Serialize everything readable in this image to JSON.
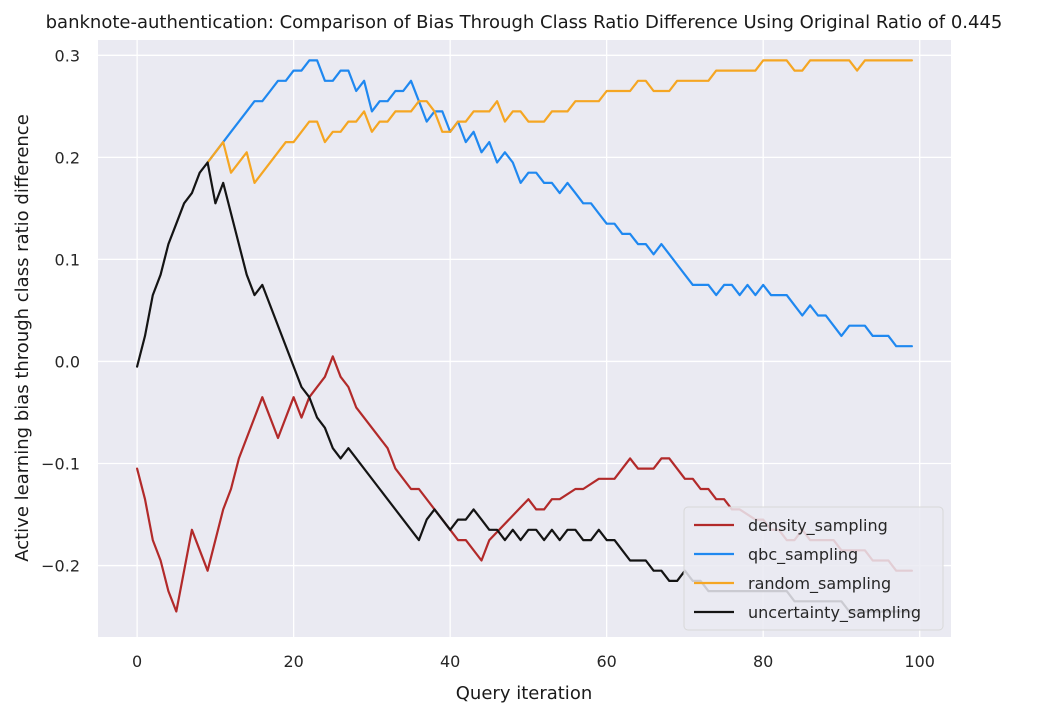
{
  "chart_data": {
    "type": "line",
    "title": "banknote-authentication: Comparison of Bias Through Class Ratio Difference Using Original Ratio of 0.445",
    "xlabel": "Query iteration",
    "ylabel": "Active learning bias through class ratio difference",
    "xlim": [
      -5,
      104
    ],
    "ylim": [
      -0.27,
      0.315
    ],
    "xticks": [
      0,
      20,
      40,
      60,
      80,
      100
    ],
    "yticks": [
      -0.2,
      -0.1,
      0.0,
      0.1,
      0.2,
      0.3
    ],
    "xtick_labels": [
      "0",
      "20",
      "40",
      "60",
      "80",
      "100"
    ],
    "ytick_labels": [
      "−0.2",
      "−0.1",
      "0.0",
      "0.1",
      "0.2",
      "0.3"
    ],
    "grid": true,
    "legend_position": "lower-right",
    "series": [
      {
        "name": "density_sampling",
        "color": "#b22a2a",
        "x": [
          0,
          1,
          2,
          3,
          4,
          5,
          7,
          9,
          11,
          12,
          13,
          16,
          18,
          20,
          21,
          22,
          24,
          25,
          26,
          27,
          28,
          32,
          33,
          35,
          36,
          40,
          41,
          42,
          44,
          45,
          50,
          51,
          52,
          53,
          54,
          56,
          57,
          59,
          61,
          62,
          63,
          64,
          66,
          67,
          68,
          70,
          71,
          72,
          73,
          74,
          75,
          76,
          77,
          79,
          80,
          81,
          82,
          83,
          84,
          85,
          86,
          87,
          88,
          89,
          90,
          91,
          92,
          93,
          94,
          95,
          96,
          97,
          98,
          99
        ],
        "y": [
          -0.105,
          -0.135,
          -0.175,
          -0.195,
          -0.225,
          -0.245,
          -0.165,
          -0.205,
          -0.145,
          -0.125,
          -0.095,
          -0.035,
          -0.075,
          -0.035,
          -0.055,
          -0.035,
          -0.015,
          0.005,
          -0.015,
          -0.025,
          -0.045,
          -0.085,
          -0.105,
          -0.125,
          -0.125,
          -0.165,
          -0.175,
          -0.175,
          -0.195,
          -0.175,
          -0.135,
          -0.145,
          -0.145,
          -0.135,
          -0.135,
          -0.125,
          -0.125,
          -0.115,
          -0.115,
          -0.105,
          -0.095,
          -0.105,
          -0.105,
          -0.095,
          -0.095,
          -0.115,
          -0.115,
          -0.125,
          -0.125,
          -0.135,
          -0.135,
          -0.145,
          -0.145,
          -0.155,
          -0.155,
          -0.165,
          -0.165,
          -0.175,
          -0.175,
          -0.165,
          -0.175,
          -0.175,
          -0.175,
          -0.175,
          -0.185,
          -0.185,
          -0.185,
          -0.185,
          -0.195,
          -0.195,
          -0.195,
          -0.205,
          -0.205,
          -0.205
        ]
      },
      {
        "name": "qbc_sampling",
        "color": "#1f88f0",
        "x": [
          9,
          11,
          12,
          13,
          14,
          15,
          16,
          17,
          18,
          19,
          20,
          21,
          22,
          23,
          24,
          25,
          26,
          27,
          28,
          29,
          30,
          31,
          32,
          33,
          34,
          35,
          36,
          37,
          38,
          39,
          40,
          41,
          42,
          43,
          44,
          45,
          46,
          47,
          48,
          49,
          50,
          51,
          52,
          53,
          54,
          55,
          56,
          57,
          58,
          59,
          60,
          61,
          62,
          63,
          64,
          65,
          66,
          67,
          68,
          69,
          70,
          71,
          72,
          73,
          74,
          75,
          76,
          77,
          78,
          79,
          80,
          81,
          82,
          83,
          84,
          85,
          86,
          87,
          88,
          89,
          90,
          91,
          92,
          93,
          94,
          95,
          96,
          97,
          98,
          99
        ],
        "y": [
          0.195,
          0.215,
          0.225,
          0.235,
          0.245,
          0.255,
          0.255,
          0.265,
          0.275,
          0.275,
          0.285,
          0.285,
          0.295,
          0.295,
          0.275,
          0.275,
          0.285,
          0.285,
          0.265,
          0.275,
          0.245,
          0.255,
          0.255,
          0.265,
          0.265,
          0.275,
          0.255,
          0.235,
          0.245,
          0.245,
          0.225,
          0.235,
          0.215,
          0.225,
          0.205,
          0.215,
          0.195,
          0.205,
          0.195,
          0.175,
          0.185,
          0.185,
          0.175,
          0.175,
          0.165,
          0.175,
          0.165,
          0.155,
          0.155,
          0.145,
          0.135,
          0.135,
          0.125,
          0.125,
          0.115,
          0.115,
          0.105,
          0.115,
          0.105,
          0.095,
          0.085,
          0.075,
          0.075,
          0.075,
          0.065,
          0.075,
          0.075,
          0.065,
          0.075,
          0.065,
          0.075,
          0.065,
          0.065,
          0.065,
          0.055,
          0.045,
          0.055,
          0.045,
          0.045,
          0.035,
          0.025,
          0.035,
          0.035,
          0.035,
          0.025,
          0.025,
          0.025,
          0.015,
          0.015,
          0.015
        ]
      },
      {
        "name": "random_sampling",
        "color": "#f5a623",
        "x": [
          9,
          11,
          12,
          14,
          15,
          19,
          20,
          22,
          23,
          24,
          25,
          26,
          27,
          28,
          29,
          30,
          31,
          32,
          33,
          34,
          35,
          36,
          37,
          38,
          39,
          40,
          41,
          42,
          43,
          44,
          45,
          46,
          47,
          48,
          49,
          50,
          51,
          52,
          53,
          54,
          55,
          56,
          57,
          58,
          59,
          60,
          61,
          62,
          63,
          64,
          65,
          66,
          67,
          68,
          69,
          70,
          71,
          72,
          73,
          74,
          75,
          76,
          77,
          78,
          79,
          80,
          81,
          82,
          83,
          84,
          85,
          86,
          87,
          88,
          89,
          90,
          91,
          92,
          93,
          94,
          95,
          96,
          97,
          98,
          99
        ],
        "y": [
          0.195,
          0.215,
          0.185,
          0.205,
          0.175,
          0.215,
          0.215,
          0.235,
          0.235,
          0.215,
          0.225,
          0.225,
          0.235,
          0.235,
          0.245,
          0.225,
          0.235,
          0.235,
          0.245,
          0.245,
          0.245,
          0.255,
          0.255,
          0.245,
          0.225,
          0.225,
          0.235,
          0.235,
          0.245,
          0.245,
          0.245,
          0.255,
          0.235,
          0.245,
          0.245,
          0.235,
          0.235,
          0.235,
          0.245,
          0.245,
          0.245,
          0.255,
          0.255,
          0.255,
          0.255,
          0.265,
          0.265,
          0.265,
          0.265,
          0.275,
          0.275,
          0.265,
          0.265,
          0.265,
          0.275,
          0.275,
          0.275,
          0.275,
          0.275,
          0.285,
          0.285,
          0.285,
          0.285,
          0.285,
          0.285,
          0.295,
          0.295,
          0.295,
          0.295,
          0.285,
          0.285,
          0.295,
          0.295,
          0.295,
          0.295,
          0.295,
          0.295,
          0.285,
          0.295,
          0.295,
          0.295,
          0.295,
          0.295,
          0.295,
          0.295
        ]
      },
      {
        "name": "uncertainty_sampling",
        "color": "#141414",
        "x": [
          0,
          1,
          2,
          3,
          4,
          5,
          6,
          7,
          8,
          9,
          10,
          11,
          14,
          15,
          16,
          21,
          22,
          23,
          24,
          25,
          26,
          27,
          36,
          37,
          38,
          40,
          41,
          42,
          43,
          44,
          45,
          46,
          47,
          48,
          49,
          50,
          51,
          52,
          53,
          54,
          55,
          56,
          57,
          58,
          59,
          60,
          61,
          62,
          63,
          64,
          65,
          66,
          67,
          68,
          69,
          70,
          71,
          72,
          73,
          74,
          75,
          76,
          77,
          78,
          79,
          80,
          81,
          82,
          83,
          84,
          85,
          86,
          87,
          88,
          89,
          90,
          91,
          92,
          93,
          94,
          95,
          96,
          97,
          98,
          99
        ],
        "y": [
          -0.005,
          0.025,
          0.065,
          0.085,
          0.115,
          0.135,
          0.155,
          0.165,
          0.185,
          0.195,
          0.155,
          0.175,
          0.085,
          0.065,
          0.075,
          -0.025,
          -0.035,
          -0.055,
          -0.065,
          -0.085,
          -0.095,
          -0.085,
          -0.175,
          -0.155,
          -0.145,
          -0.165,
          -0.155,
          -0.155,
          -0.145,
          -0.155,
          -0.165,
          -0.165,
          -0.175,
          -0.165,
          -0.175,
          -0.165,
          -0.165,
          -0.175,
          -0.165,
          -0.175,
          -0.165,
          -0.165,
          -0.175,
          -0.175,
          -0.165,
          -0.175,
          -0.175,
          -0.185,
          -0.195,
          -0.195,
          -0.195,
          -0.205,
          -0.205,
          -0.215,
          -0.215,
          -0.205,
          -0.215,
          -0.215,
          -0.225,
          -0.225,
          -0.225,
          -0.225,
          -0.225,
          -0.225,
          -0.225,
          -0.225,
          -0.225,
          -0.225,
          -0.225,
          -0.235,
          -0.235,
          -0.235,
          -0.235,
          -0.235,
          -0.235,
          -0.235,
          -0.245,
          -0.245,
          -0.245,
          -0.245,
          -0.245,
          -0.245,
          -0.245,
          -0.245,
          -0.245
        ]
      }
    ]
  }
}
